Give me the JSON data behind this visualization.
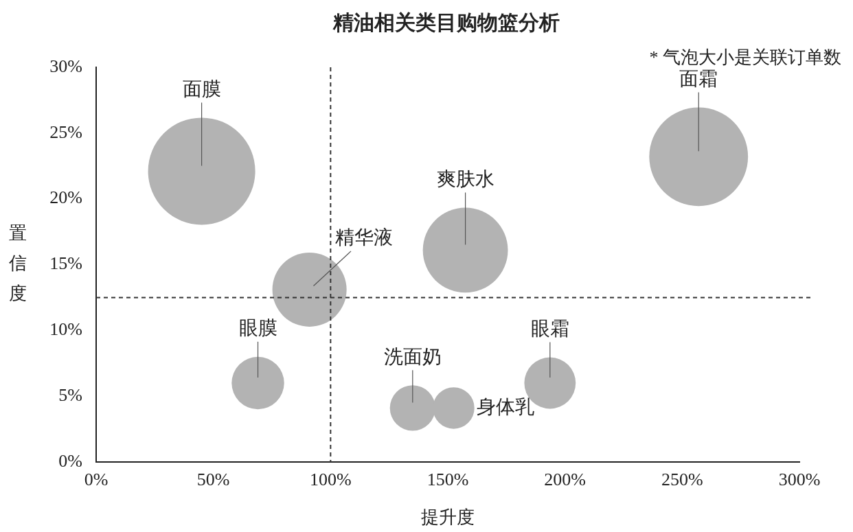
{
  "chart_data": {
    "type": "bubble",
    "title": "精油相关类目购物篮分析",
    "xlabel": "提升度",
    "ylabel": "置信度",
    "x": [
      45,
      257,
      91,
      157.5,
      69,
      135,
      152.5,
      193.6
    ],
    "values": [
      22.1,
      23.2,
      13.1,
      16.1,
      6,
      4.1,
      4.1,
      6
    ],
    "sizes": [
      1,
      0.85,
      0.48,
      0.63,
      0.24,
      0.18,
      0.15,
      0.23
    ],
    "color": "#b3b3b3",
    "xlim": [
      0,
      300
    ],
    "xticks": [
      {
        "value": 0,
        "label": "0%"
      },
      {
        "value": 50,
        "label": "50%"
      },
      {
        "value": 100,
        "label": "100%"
      },
      {
        "value": 150,
        "label": "150%"
      },
      {
        "value": 200,
        "label": "200%"
      },
      {
        "value": 250,
        "label": "250%"
      },
      {
        "value": 300,
        "label": "300%"
      }
    ],
    "ylim": [
      0,
      30
    ],
    "yticks": [
      {
        "value": 0,
        "label": "0%"
      },
      {
        "value": 5,
        "label": "5%"
      },
      {
        "value": 10,
        "label": "10%"
      },
      {
        "value": 15,
        "label": "15%"
      },
      {
        "value": 20,
        "label": "20%"
      },
      {
        "value": 25,
        "label": "25%"
      },
      {
        "value": 30,
        "label": "30%"
      }
    ],
    "grid": false,
    "legend": false,
    "ref_lines": [
      {
        "axis": "x",
        "value": 100,
        "line_style": "dashed"
      },
      {
        "axis": "y",
        "value": 12.5,
        "line_style": "dashed"
      }
    ],
    "annotations": [
      "* 气泡大小是关联订单数",
      {
        "text": "面膜",
        "x": 45,
        "y": 22.1
      },
      {
        "text": "面霜",
        "x": 257,
        "y": 23.2
      },
      {
        "text": "精华液",
        "x": 91,
        "y": 13.1
      },
      {
        "text": "爽肤水",
        "x": 157.5,
        "y": 16.1
      },
      {
        "text": "眼膜",
        "x": 69,
        "y": 6
      },
      {
        "text": "洗面奶",
        "x": 135,
        "y": 4.1
      },
      {
        "text": "身体乳",
        "x": 152.5,
        "y": 4.1
      },
      {
        "text": "眼霜",
        "x": 193.6,
        "y": 6
      }
    ]
  }
}
